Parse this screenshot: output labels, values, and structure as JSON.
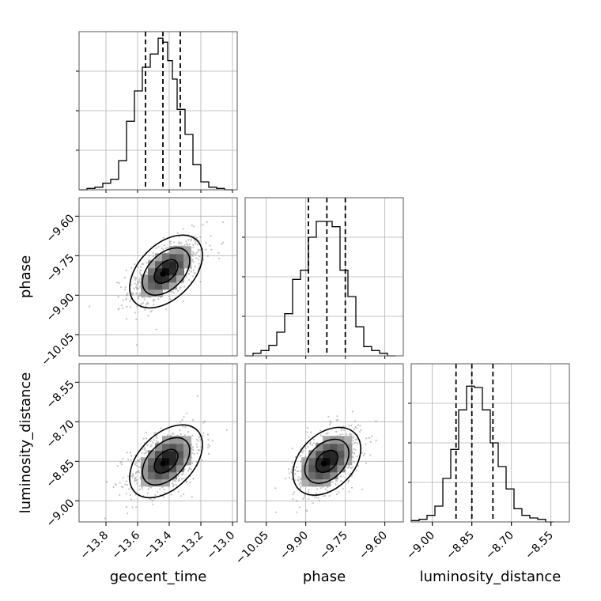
{
  "chart_data": {
    "type": "corner",
    "parameters": [
      "geocent_time",
      "phase",
      "luminosity_distance"
    ],
    "ticks": {
      "geocent_time": [
        "−13.8",
        "−13.6",
        "−13.4",
        "−13.2",
        "−13.0"
      ],
      "phase": [
        "−10.05",
        "−9.90",
        "−9.75",
        "−9.60"
      ],
      "luminosity_distance": [
        "−9.00",
        "−8.85",
        "−8.70",
        "−8.55"
      ]
    },
    "tick_values": {
      "geocent_time": [
        -13.8,
        -13.6,
        -13.4,
        -13.2,
        -13.0
      ],
      "phase": [
        -10.05,
        -9.9,
        -9.75,
        -9.6
      ],
      "luminosity_distance": [
        -9.0,
        -8.85,
        -8.7,
        -8.55
      ]
    },
    "ranges": {
      "geocent_time": [
        -13.97,
        -12.97
      ],
      "phase": [
        -10.13,
        -9.53
      ],
      "luminosity_distance": [
        -9.08,
        -8.48
      ]
    },
    "grid": true,
    "histograms": [
      {
        "parameter": "geocent_time",
        "bin_edges": [
          -13.97,
          -13.92,
          -13.87,
          -13.82,
          -13.77,
          -13.72,
          -13.67,
          -13.62,
          -13.57,
          -13.52,
          -13.47,
          -13.44,
          -13.41,
          -13.38,
          -13.35,
          -13.3,
          -13.25,
          -13.2,
          -13.15,
          -13.1,
          -13.05,
          -13.0
        ],
        "counts": [
          0,
          0.01,
          0.02,
          0.05,
          0.08,
          0.22,
          0.52,
          0.75,
          0.93,
          1.03,
          1.15,
          1.12,
          0.98,
          0.84,
          0.61,
          0.42,
          0.19,
          0.06,
          0.02,
          0.01,
          0
        ],
        "quantiles": [
          -13.55,
          -13.44,
          -13.33
        ]
      },
      {
        "parameter": "phase",
        "bin_edges": [
          -10.13,
          -10.1,
          -10.07,
          -10.04,
          -10.01,
          -9.98,
          -9.95,
          -9.92,
          -9.89,
          -9.86,
          -9.83,
          -9.8,
          -9.77,
          -9.74,
          -9.71,
          -9.68,
          -9.65,
          -9.62,
          -9.59,
          -9.56
        ],
        "counts": [
          0.0,
          0.02,
          0.04,
          0.08,
          0.18,
          0.32,
          0.58,
          0.65,
          0.9,
          1.02,
          1.02,
          0.98,
          0.65,
          0.45,
          0.22,
          0.07,
          0.04,
          0.02,
          0.0
        ],
        "quantiles": [
          -9.89,
          -9.82,
          -9.75
        ]
      },
      {
        "parameter": "luminosity_distance",
        "bin_edges": [
          -9.08,
          -9.05,
          -9.02,
          -8.99,
          -8.96,
          -8.93,
          -8.9,
          -8.87,
          -8.84,
          -8.81,
          -8.78,
          -8.75,
          -8.72,
          -8.69,
          -8.66,
          -8.63,
          -8.6,
          -8.57,
          -8.54
        ],
        "counts": [
          0.01,
          0.02,
          0.05,
          0.12,
          0.33,
          0.55,
          0.85,
          1.03,
          1.02,
          0.85,
          0.6,
          0.42,
          0.25,
          0.1,
          0.05,
          0.03,
          0.02,
          0.0
        ],
        "quantiles": [
          -8.91,
          -8.85,
          -8.77
        ]
      }
    ],
    "scatter_panels": [
      {
        "x": "geocent_time",
        "y": "phase",
        "mean": [
          -13.42,
          -9.81
        ],
        "std": [
          0.12,
          0.065
        ],
        "corr": 0.6
      },
      {
        "x": "geocent_time",
        "y": "luminosity_distance",
        "mean": [
          -13.42,
          -8.85
        ],
        "std": [
          0.12,
          0.065
        ],
        "corr": 0.45
      },
      {
        "x": "phase",
        "y": "luminosity_distance",
        "mean": [
          -9.82,
          -8.85
        ],
        "std": [
          0.065,
          0.065
        ],
        "corr": 0.45
      }
    ]
  }
}
